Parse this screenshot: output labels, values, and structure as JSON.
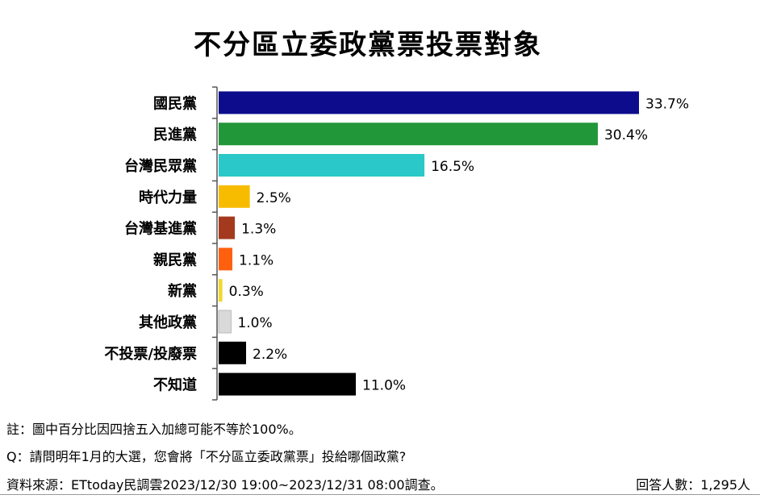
{
  "chart_data": {
    "type": "bar",
    "orientation": "horizontal",
    "title": "不分區立委政黨票投票對象",
    "categories": [
      "國民黨",
      "民進黨",
      "台灣民眾黨",
      "時代力量",
      "台灣基進黨",
      "親民黨",
      "新黨",
      "其他政黨",
      "不投票/投廢票",
      "不知道"
    ],
    "values": [
      33.7,
      30.4,
      16.5,
      2.5,
      1.3,
      1.1,
      0.3,
      1.0,
      2.2,
      11.0
    ],
    "value_labels": [
      "33.7%",
      "30.4%",
      "16.5%",
      "2.5%",
      "1.3%",
      "1.1%",
      "0.3%",
      "1.0%",
      "2.2%",
      "11.0%"
    ],
    "colors": [
      "#0c0c8c",
      "#22973a",
      "#2ac8c8",
      "#f7bc00",
      "#a33a1e",
      "#ff6010",
      "#f2d82e",
      "#d9d9d9",
      "#000000",
      "#000000"
    ],
    "xlim": [
      0,
      33.7
    ],
    "legend": "none",
    "grid": false
  },
  "notes": {
    "note1": "註：圖中百分比因四捨五入加總可能不等於100%。",
    "question": "Q：請問明年1月的大選，您會將「不分區立委政黨票」投給哪個政黨?",
    "source": "資料來源：ETtoday民調雲2023/12/30 19:00~2023/12/31 08:00調查。",
    "respondents": "回答人數：1,295人"
  }
}
